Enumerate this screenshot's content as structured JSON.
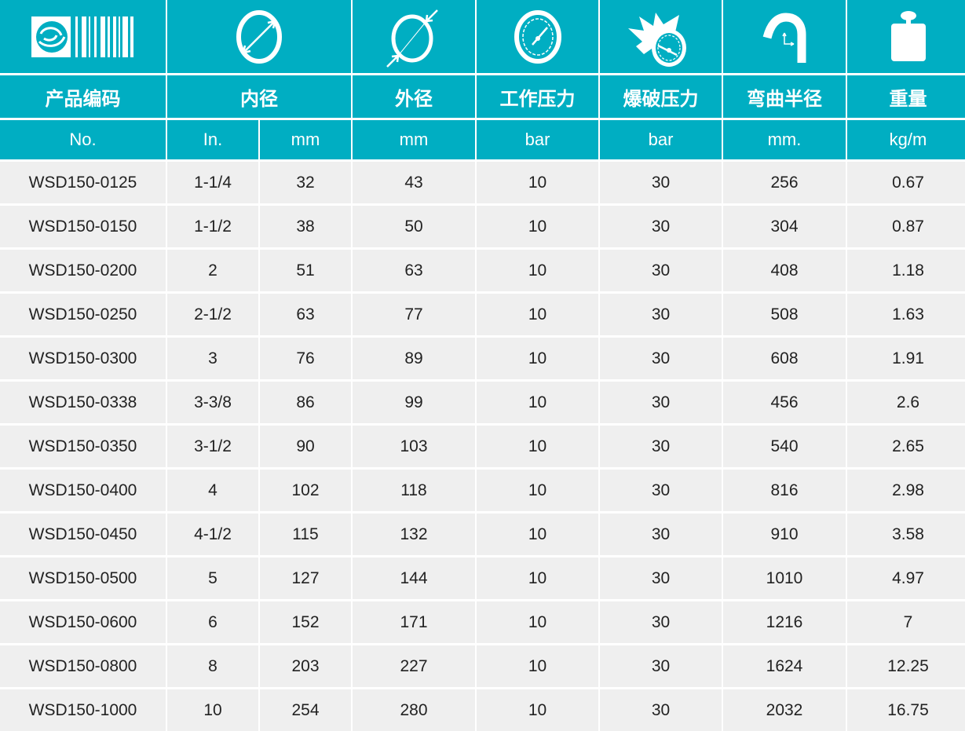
{
  "colors": {
    "header": "#00aec2",
    "row": "#efefef"
  },
  "icons": [
    "product-code-logo-icon",
    "inner-diameter-icon",
    "outer-diameter-icon",
    "pressure-gauge-icon",
    "burst-gauge-icon",
    "bend-radius-icon",
    "weight-icon"
  ],
  "titles": [
    "产品编码",
    "内径",
    "外径",
    "工作压力",
    "爆破压力",
    "弯曲半径",
    "重量"
  ],
  "units": [
    "No.",
    "In.",
    "mm",
    "mm",
    "bar",
    "bar",
    "mm.",
    "kg/m"
  ],
  "rows": [
    [
      "WSD150-0125",
      "1-1/4",
      "32",
      "43",
      "10",
      "30",
      "256",
      "0.67"
    ],
    [
      "WSD150-0150",
      "1-1/2",
      "38",
      "50",
      "10",
      "30",
      "304",
      "0.87"
    ],
    [
      "WSD150-0200",
      "2",
      "51",
      "63",
      "10",
      "30",
      "408",
      "1.18"
    ],
    [
      "WSD150-0250",
      "2-1/2",
      "63",
      "77",
      "10",
      "30",
      "508",
      "1.63"
    ],
    [
      "WSD150-0300",
      "3",
      "76",
      "89",
      "10",
      "30",
      "608",
      "1.91"
    ],
    [
      "WSD150-0338",
      "3-3/8",
      "86",
      "99",
      "10",
      "30",
      "456",
      "2.6"
    ],
    [
      "WSD150-0350",
      "3-1/2",
      "90",
      "103",
      "10",
      "30",
      "540",
      "2.65"
    ],
    [
      "WSD150-0400",
      "4",
      "102",
      "118",
      "10",
      "30",
      "816",
      "2.98"
    ],
    [
      "WSD150-0450",
      "4-1/2",
      "115",
      "132",
      "10",
      "30",
      "910",
      "3.58"
    ],
    [
      "WSD150-0500",
      "5",
      "127",
      "144",
      "10",
      "30",
      "1010",
      "4.97"
    ],
    [
      "WSD150-0600",
      "6",
      "152",
      "171",
      "10",
      "30",
      "1216",
      "7"
    ],
    [
      "WSD150-0800",
      "8",
      "203",
      "227",
      "10",
      "30",
      "1624",
      "12.25"
    ],
    [
      "WSD150-1000",
      "10",
      "254",
      "280",
      "10",
      "30",
      "2032",
      "16.75"
    ]
  ]
}
